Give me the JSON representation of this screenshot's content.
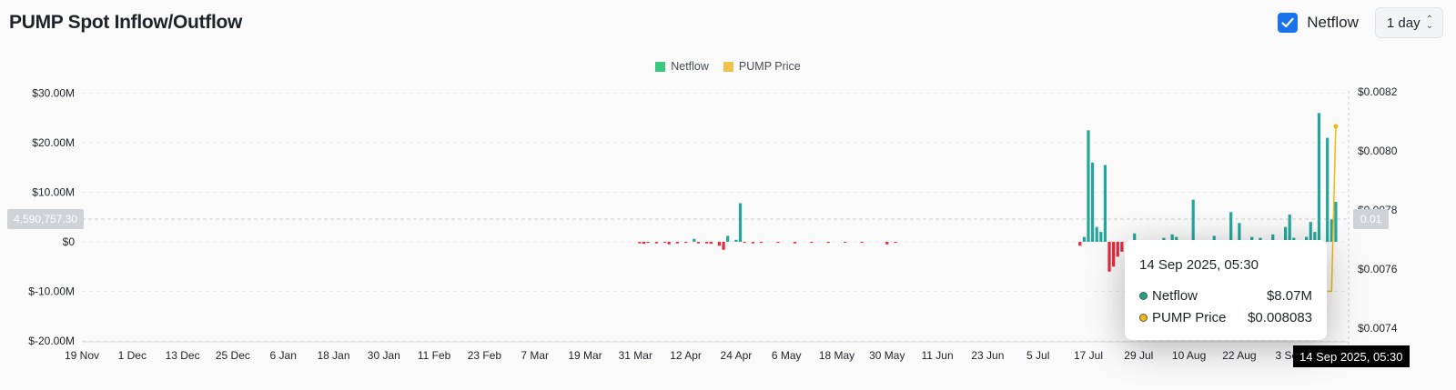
{
  "header": {
    "title": "PUMP Spot Inflow/Outflow",
    "netflow_toggle_label": "Netflow",
    "netflow_checked": true,
    "interval_value": "1 day"
  },
  "tooltip": {
    "date": "14 Sep 2025, 05:30",
    "rows": [
      {
        "name": "Netflow",
        "value": "$8.07M",
        "color": "#1aa381"
      },
      {
        "name": "PUMP Price",
        "value": "$0.008083",
        "color": "#f0b90b"
      }
    ]
  },
  "crosshair": {
    "x_label": "14 Sep 2025, 05:30",
    "y_left_label": "4,590,757.30",
    "y_right_label": "0.01"
  },
  "colors": {
    "positive": "#26a69a",
    "negative": "#e8293a",
    "price": "#f0b90b",
    "legend_netflow": "#3cc77e",
    "legend_price": "#f0c24b"
  },
  "chart_data": {
    "type": "bar",
    "legend": [
      {
        "name": "Netflow",
        "color": "#3cc77e"
      },
      {
        "name": "PUMP Price",
        "color": "#f0c24b"
      }
    ],
    "left_axis": {
      "ticks": [
        30,
        20,
        10,
        0,
        -10,
        -20
      ],
      "tick_labels": [
        "$30.00M",
        "$20.00M",
        "$10.00M",
        "$0",
        "$-10.00M",
        "$-20.00M"
      ],
      "ylim": [
        -20,
        30
      ],
      "unit": "M USD"
    },
    "right_axis": {
      "ticks": [
        0.0082,
        0.008,
        0.0078,
        0.0076,
        0.0074
      ],
      "tick_labels": [
        "$0.0082",
        "$0.0080",
        "$0.0078",
        "$0.0076",
        "$0.0074"
      ]
    },
    "x_tick_labels": [
      "19 Nov",
      "1 Dec",
      "13 Dec",
      "25 Dec",
      "6 Jan",
      "18 Jan",
      "30 Jan",
      "11 Feb",
      "23 Feb",
      "7 Mar",
      "19 Mar",
      "31 Mar",
      "12 Apr",
      "24 Apr",
      "6 May",
      "18 May",
      "30 May",
      "11 Jun",
      "23 Jun",
      "5 Jul",
      "17 Jul",
      "29 Jul",
      "10 Aug",
      "22 Aug",
      "3 Sep"
    ],
    "grid": true,
    "series": [
      {
        "name": "Netflow",
        "unit": "M USD",
        "points": [
          [
            "2025-04-01",
            -0.3
          ],
          [
            "2025-04-02",
            -0.4
          ],
          [
            "2025-04-03",
            -0.2
          ],
          [
            "2025-04-05",
            -0.3
          ],
          [
            "2025-04-07",
            -0.2
          ],
          [
            "2025-04-08",
            -0.5
          ],
          [
            "2025-04-10",
            -0.3
          ],
          [
            "2025-04-12",
            -0.2
          ],
          [
            "2025-04-14",
            0.6
          ],
          [
            "2025-04-15",
            -0.3
          ],
          [
            "2025-04-17",
            -0.3
          ],
          [
            "2025-04-18",
            -0.4
          ],
          [
            "2025-04-20",
            -0.8
          ],
          [
            "2025-04-21",
            -1.6
          ],
          [
            "2025-04-22",
            1.2
          ],
          [
            "2025-04-24",
            0.4
          ],
          [
            "2025-04-25",
            7.8
          ],
          [
            "2025-04-26",
            -0.2
          ],
          [
            "2025-04-28",
            -0.3
          ],
          [
            "2025-04-30",
            -0.2
          ],
          [
            "2025-05-04",
            -0.2
          ],
          [
            "2025-05-08",
            -0.3
          ],
          [
            "2025-05-12",
            -0.2
          ],
          [
            "2025-05-16",
            -0.2
          ],
          [
            "2025-05-20",
            -0.1
          ],
          [
            "2025-05-24",
            -0.2
          ],
          [
            "2025-05-30",
            -0.5
          ],
          [
            "2025-06-01",
            -0.2
          ],
          [
            "2025-07-15",
            -0.8
          ],
          [
            "2025-07-16",
            1.0
          ],
          [
            "2025-07-17",
            22.5
          ],
          [
            "2025-07-18",
            16.0
          ],
          [
            "2025-07-19",
            3.0
          ],
          [
            "2025-07-20",
            2.0
          ],
          [
            "2025-07-21",
            15.5
          ],
          [
            "2025-07-22",
            -6.0
          ],
          [
            "2025-07-23",
            -5.0
          ],
          [
            "2025-07-24",
            -3.0
          ],
          [
            "2025-07-25",
            -2.0
          ],
          [
            "2025-07-28",
            1.7
          ],
          [
            "2025-08-01",
            -2.0
          ],
          [
            "2025-08-04",
            0.8
          ],
          [
            "2025-08-06",
            1.5
          ],
          [
            "2025-08-07",
            1.0
          ],
          [
            "2025-08-09",
            -1.5
          ],
          [
            "2025-08-11",
            8.5
          ],
          [
            "2025-08-13",
            -1.0
          ],
          [
            "2025-08-16",
            1.2
          ],
          [
            "2025-08-20",
            6.0
          ],
          [
            "2025-08-22",
            3.8
          ],
          [
            "2025-08-25",
            1.0
          ],
          [
            "2025-08-27",
            0.8
          ],
          [
            "2025-08-30",
            1.5
          ],
          [
            "2025-09-02",
            3.0
          ],
          [
            "2025-09-03",
            5.5
          ],
          [
            "2025-09-04",
            0.8
          ],
          [
            "2025-09-05",
            -2.5
          ],
          [
            "2025-09-06",
            -1.5
          ],
          [
            "2025-09-07",
            1.0
          ],
          [
            "2025-09-08",
            4.0
          ],
          [
            "2025-09-09",
            2.0
          ],
          [
            "2025-09-10",
            26.0
          ],
          [
            "2025-09-11",
            -6.0
          ],
          [
            "2025-09-12",
            21.0
          ],
          [
            "2025-09-13",
            4.5
          ],
          [
            "2025-09-14",
            8.07
          ]
        ]
      },
      {
        "name": "PUMP Price",
        "unit": "USD",
        "points": [
          [
            "2025-09-12",
            0.007525
          ],
          [
            "2025-09-13",
            0.007525
          ],
          [
            "2025-09-14",
            0.008083
          ]
        ]
      }
    ]
  }
}
